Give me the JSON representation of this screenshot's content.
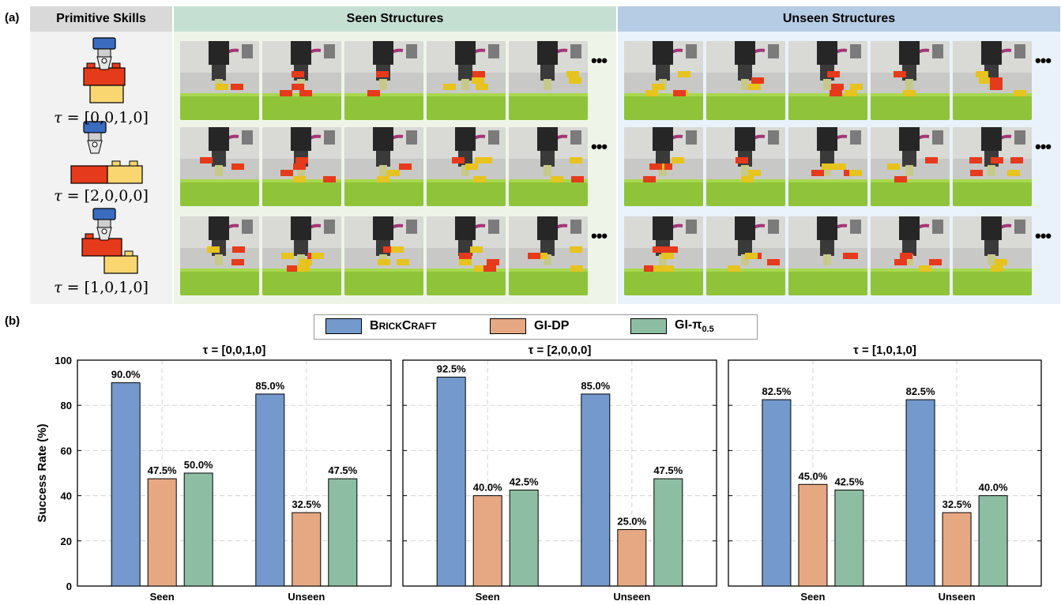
{
  "panel_a_label": "(a)",
  "panel_b_label": "(b)",
  "headers": {
    "primitive": "Primitive Skills",
    "seen": "Seen Structures",
    "unseen": "Unseen Structures"
  },
  "skills": [
    {
      "tau_prefix": "τ",
      "tau_value": " = [0,0,1,0]"
    },
    {
      "tau_prefix": "τ",
      "tau_value": " = [2,0,0,0]"
    },
    {
      "tau_prefix": "τ",
      "tau_value": " = [1,0,1,0]"
    }
  ],
  "ellipsis": "•••",
  "colors": {
    "primitive_bg": "#f2f2f2",
    "primitive_hdr": "#d9d9d9",
    "seen_bg": "#eef5e8",
    "seen_hdr": "#c5e0d3",
    "unseen_bg": "#e9f2fa",
    "unseen_hdr": "#b6cbe4",
    "brickcraft": "#7499cc",
    "gidp": "#e5a883",
    "gipi": "#8dbea3",
    "lego_red": "#e53a1b",
    "lego_yellow": "#fad671",
    "gripper_blue": "#3a6cc0"
  },
  "legend": {
    "brickcraft_big1": "B",
    "brickcraft_small1": "RICK",
    "brickcraft_big2": "C",
    "brickcraft_small2": "RAFT",
    "gidp": "GI-DP",
    "gipi": "GI-π",
    "gipi_sub": "0.5"
  },
  "chart_data": [
    {
      "type": "bar",
      "title": "τ = [0,0,1,0]",
      "categories": [
        "Seen",
        "Unseen"
      ],
      "series": [
        {
          "name": "BrickCraft",
          "values": [
            90.0,
            85.0
          ]
        },
        {
          "name": "GI-DP",
          "values": [
            47.5,
            32.5
          ]
        },
        {
          "name": "GI-π0.5",
          "values": [
            50.0,
            47.5
          ]
        }
      ],
      "ylabel": "Success Rate (%)",
      "ylim": [
        0,
        100
      ],
      "yticks": [
        0,
        20,
        40,
        60,
        80,
        100
      ],
      "grid": true
    },
    {
      "type": "bar",
      "title": "τ = [2,0,0,0]",
      "categories": [
        "Seen",
        "Unseen"
      ],
      "series": [
        {
          "name": "BrickCraft",
          "values": [
            92.5,
            85.0
          ]
        },
        {
          "name": "GI-DP",
          "values": [
            40.0,
            25.0
          ]
        },
        {
          "name": "GI-π0.5",
          "values": [
            42.5,
            47.5
          ]
        }
      ],
      "ylim": [
        0,
        100
      ],
      "grid": true
    },
    {
      "type": "bar",
      "title": "τ = [1,0,1,0]",
      "categories": [
        "Seen",
        "Unseen"
      ],
      "series": [
        {
          "name": "BrickCraft",
          "values": [
            82.5,
            82.5
          ]
        },
        {
          "name": "GI-DP",
          "values": [
            45.0,
            32.5
          ]
        },
        {
          "name": "GI-π0.5",
          "values": [
            42.5,
            40.0
          ]
        }
      ],
      "ylim": [
        0,
        100
      ],
      "grid": true
    }
  ]
}
